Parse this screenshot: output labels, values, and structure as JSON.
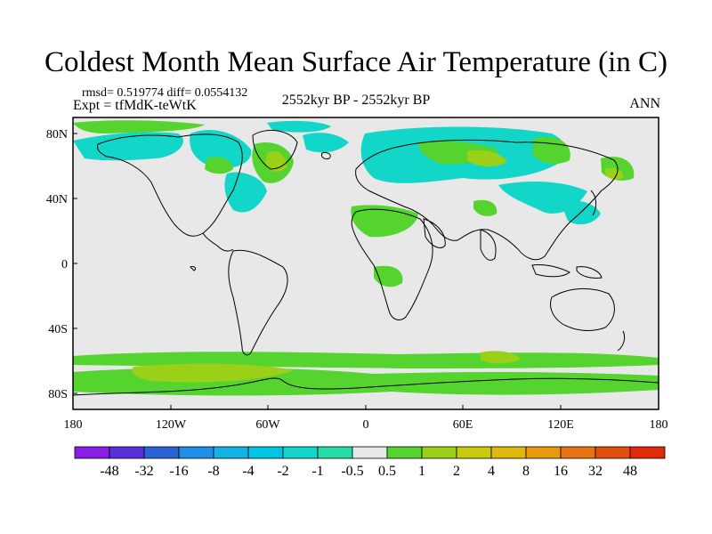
{
  "title": "Coldest Month Mean Surface Air Temperature (in C)",
  "stats": {
    "rmsd_label": "rmsd=",
    "rmsd": "0.519774",
    "diff_label": "diff=",
    "diff": "0.0554132"
  },
  "experiment": "Expt = tfMdK-teWtK",
  "period": "2552kyr BP - 2552kyr BP",
  "season": "ANN",
  "axes": {
    "x_ticks": [
      "180",
      "120W",
      "60W",
      "0",
      "60E",
      "120E",
      "180"
    ],
    "y_ticks": [
      "80N",
      "40N",
      "0",
      "40S",
      "80S"
    ]
  },
  "colorbar": {
    "colors": [
      "#8a1de6",
      "#5a2ed8",
      "#2a63d6",
      "#1e8ee6",
      "#12b4e6",
      "#00c6e2",
      "#12d6c8",
      "#28dcaa",
      "#e8e8e8",
      "#55d430",
      "#9ad018",
      "#c8cc0a",
      "#deb80a",
      "#e89a0c",
      "#e8720f",
      "#e44e0f",
      "#e22a0a"
    ],
    "labels": [
      "-48",
      "-32",
      "-16",
      "-8",
      "-4",
      "-2",
      "-1",
      "-0.5",
      "0.5",
      "1",
      "2",
      "4",
      "8",
      "16",
      "32",
      "48"
    ]
  },
  "anomaly_colors": {
    "cool": "#12d6c8",
    "warm": "#55d430",
    "strong_warm": "#9ad018",
    "neutral": "#e8e8e8",
    "coast": "#000000"
  }
}
